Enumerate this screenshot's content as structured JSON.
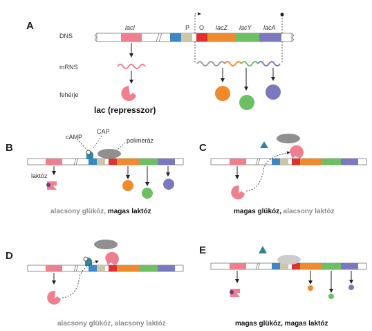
{
  "panels": {
    "a": "A",
    "b": "B",
    "c": "C",
    "d": "D",
    "e": "E"
  },
  "row_labels": {
    "dna": "DNS",
    "mrna": "mRNS",
    "protein": "fehérje"
  },
  "genes": {
    "laci": "lacI",
    "p": "P",
    "o": "O",
    "lacz": "lacZ",
    "lacy": "lacY",
    "laca": "lacA"
  },
  "repressor_label": "lac (represszor)",
  "labels": {
    "camp": "cAMP",
    "cap": "CAP",
    "polymerase": "polimeráz",
    "lactose": "laktóz"
  },
  "captions": {
    "b": {
      "part1": "alacsony glükóz,",
      "part2": " magas laktóz"
    },
    "c": {
      "part1": "magas glükóz,",
      "part2": " alacsony laktóz"
    },
    "d": {
      "text": "alacsony glükóz, alacsony laktóz"
    },
    "e": {
      "text": "magas glükóz, magas laktóz"
    }
  },
  "colors": {
    "laci": "#ef7f8e",
    "promoter": "#3b87c8",
    "p_region": "#cbc6a6",
    "operator": "#e03030",
    "lacz": "#f08a2a",
    "lacy": "#6cbf62",
    "laca": "#7a78bf",
    "polymerase": "#8f8f8f",
    "cap_protein": "#2f87a3",
    "glucose_marker": "#2f8499"
  }
}
